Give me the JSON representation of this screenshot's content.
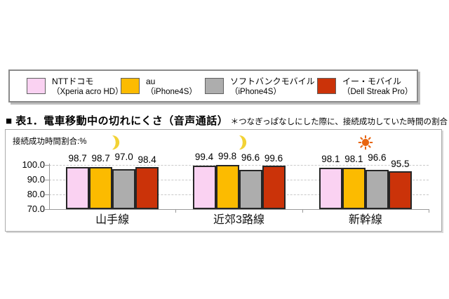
{
  "title": "■ 表1．電車移動中の切れにくさ（音声通話）",
  "note": "＊つなぎっぱなしにした際に、接続成功していた時間の割合",
  "legend": {
    "items": [
      {
        "name": "NTTドコモ",
        "device": "（Xperia acro HD）",
        "color": "#FAD2F2"
      },
      {
        "name": "au",
        "device": "（iPhone4S）",
        "color": "#FCBB00"
      },
      {
        "name": "ソフトバンクモバイル",
        "device": "（iPhone4S）",
        "color": "#ADADAD"
      },
      {
        "name": "イー・モバイル",
        "device": "（Dell Streak Pro）",
        "color": "#CB3309"
      }
    ]
  },
  "chart_data": {
    "type": "bar",
    "title": "表1．電車移動中の切れにくさ（音声通話）",
    "ylabel": "接続成功時間割合:%",
    "categories": [
      "山手線",
      "近郊3路線",
      "新幹線"
    ],
    "category_icons": [
      "moon",
      "moon",
      "sun"
    ],
    "series": [
      {
        "name": "NTTドコモ（Xperia acro HD）",
        "color": "#FAD2F2",
        "values": [
          98.7,
          99.4,
          98.1
        ]
      },
      {
        "name": "au（iPhone4S）",
        "color": "#FCBB00",
        "values": [
          98.7,
          99.8,
          98.1
        ]
      },
      {
        "name": "ソフトバンクモバイル（iPhone4S）",
        "color": "#ADADAD",
        "values": [
          97.0,
          96.6,
          96.6
        ]
      },
      {
        "name": "イー・モバイル（Dell Streak Pro）",
        "color": "#CB3309",
        "values": [
          98.4,
          99.6,
          95.5
        ]
      }
    ],
    "yticks": [
      100.0,
      90.0,
      80.0,
      70.0
    ],
    "ylim": [
      70,
      100
    ],
    "grid": "dashed-horizontal",
    "legend_position": "top",
    "icon_colors": {
      "moon": "#F2D235",
      "sun": "#E8650F"
    }
  }
}
